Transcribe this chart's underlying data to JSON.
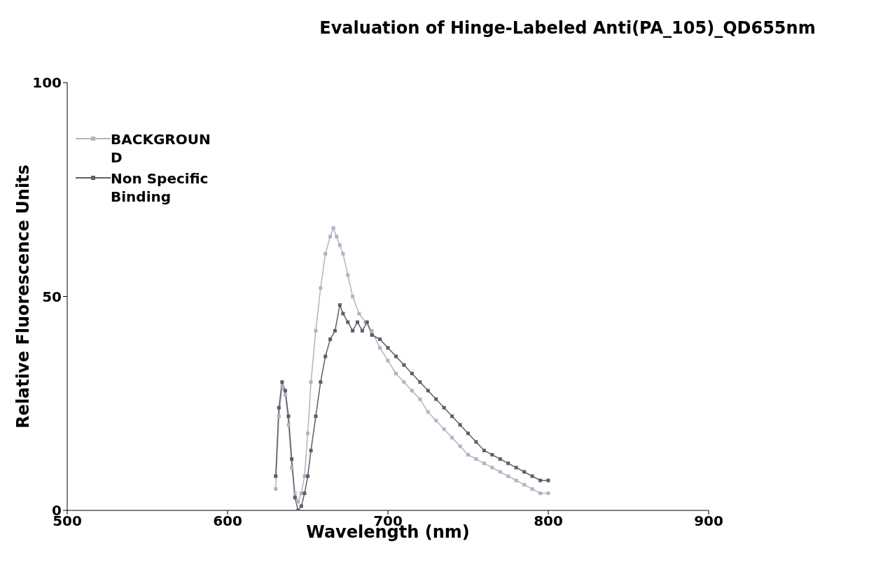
{
  "chart_data": {
    "type": "line",
    "title": "Evaluation of Hinge-Labeled Anti(PA_105)_QD655nm",
    "xlabel": "Wavelength (nm)",
    "ylabel": "Relative Fluorescence Units",
    "xlim": [
      500,
      900
    ],
    "xticks": [
      500,
      600,
      700,
      800,
      900
    ],
    "ylim": [
      0,
      100
    ],
    "yticks": [
      0,
      50,
      100
    ],
    "legend": "top left",
    "marker": "square",
    "line_style": "solid",
    "series": [
      {
        "name": "BACKGROUND",
        "color": "#b0b4c2",
        "x": [
          630,
          632,
          634,
          636,
          638,
          640,
          642,
          644,
          646,
          648,
          650,
          652,
          655,
          658,
          661,
          664,
          666,
          668,
          670,
          672,
          675,
          678,
          682,
          686,
          690,
          695,
          700,
          705,
          710,
          715,
          720,
          725,
          730,
          735,
          740,
          745,
          750,
          755,
          760,
          765,
          770,
          775,
          780,
          785,
          790,
          795,
          800
        ],
        "values": [
          5,
          22,
          29,
          27,
          20,
          10,
          4,
          2,
          4,
          8,
          18,
          30,
          42,
          52,
          60,
          64,
          66,
          64,
          62,
          60,
          55,
          50,
          46,
          44,
          42,
          38,
          35,
          32,
          30,
          28,
          26,
          23,
          21,
          19,
          17,
          15,
          13,
          12,
          11,
          10,
          9,
          8,
          7,
          6,
          5,
          4,
          4
        ]
      },
      {
        "name": "Non Specific Binding",
        "color": "#5e5e66",
        "x": [
          630,
          632,
          634,
          636,
          638,
          640,
          642,
          644,
          646,
          648,
          650,
          652,
          655,
          658,
          661,
          664,
          667,
          670,
          672,
          675,
          678,
          681,
          684,
          687,
          690,
          695,
          700,
          705,
          710,
          715,
          720,
          725,
          730,
          735,
          740,
          745,
          750,
          755,
          760,
          765,
          770,
          775,
          780,
          785,
          790,
          795,
          800
        ],
        "values": [
          8,
          24,
          30,
          28,
          22,
          12,
          3,
          0,
          1,
          4,
          8,
          14,
          22,
          30,
          36,
          40,
          42,
          48,
          46,
          44,
          42,
          44,
          42,
          44,
          41,
          40,
          38,
          36,
          34,
          32,
          30,
          28,
          26,
          24,
          22,
          20,
          18,
          16,
          14,
          13,
          12,
          11,
          10,
          9,
          8,
          7,
          7
        ]
      }
    ]
  }
}
